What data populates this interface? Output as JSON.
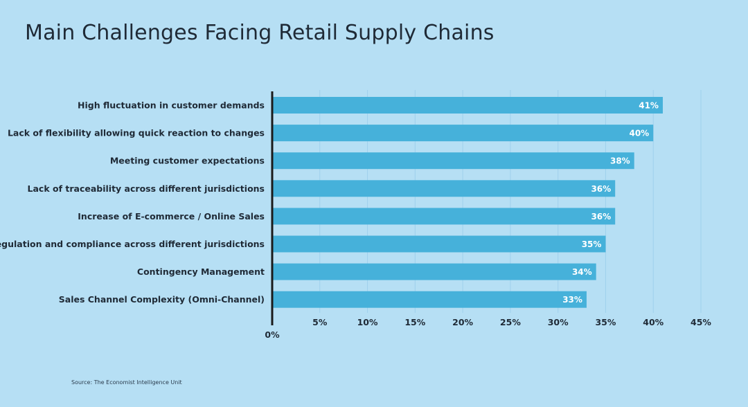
{
  "colors": {
    "background": "#b6dff4",
    "bar": "#46b1da",
    "axis": "#1a1a1a",
    "grid": "#9fd0ec",
    "text": "#1f2a36",
    "value_text": "#ffffff"
  },
  "source": "Source: The Economist Intelligence Unit",
  "chart_data": {
    "type": "bar",
    "orientation": "horizontal",
    "title": "Main Challenges Facing Retail Supply Chains",
    "categories": [
      "High fluctuation in customer demands",
      "Lack of flexibility allowing quick reaction to changes",
      "Meeting customer expectations",
      "Lack of traceability across different jurisdictions",
      "Increase of E-commerce / Online Sales",
      "Regulation and compliance across different jurisdictions",
      "Contingency Management",
      "Sales Channel Complexity (Omni-Channel)"
    ],
    "values": [
      41,
      40,
      38,
      36,
      36,
      35,
      34,
      33
    ],
    "value_labels": [
      "41%",
      "40%",
      "38%",
      "36%",
      "36%",
      "35%",
      "34%",
      "33%"
    ],
    "xlim": [
      0,
      45
    ],
    "xticks": [
      0,
      5,
      10,
      15,
      20,
      25,
      30,
      35,
      40,
      45
    ],
    "xtick_labels": [
      "0%",
      "5%",
      "10%",
      "15%",
      "20%",
      "25%",
      "30%",
      "35%",
      "40%",
      "45%"
    ],
    "grid": "vertical",
    "xlabel": "",
    "ylabel": ""
  }
}
